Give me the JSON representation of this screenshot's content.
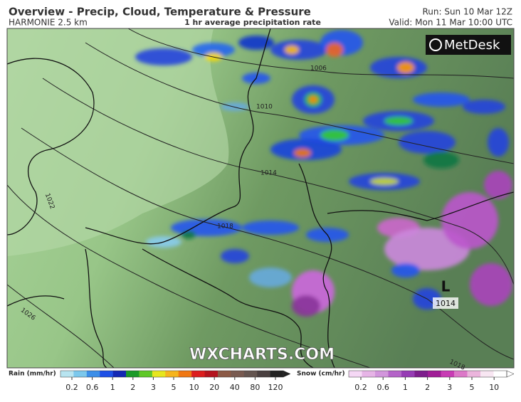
{
  "header": {
    "title": "Overview - Precip, Cloud, Temperature & Pressure",
    "model": "HARMONIE 2.5 km",
    "subtitle": "1 hr average precipitation rate",
    "run": "Run: Sun 10 Mar 12Z",
    "valid": "Valid: Mon 11 Mar 10:00 UTC"
  },
  "map": {
    "logo": "MetDesk",
    "watermark": "WXCHARTS.COM",
    "isobar_labels": [
      "1006",
      "1010",
      "1014",
      "1018",
      "1022",
      "1026",
      "1018"
    ],
    "low": {
      "symbol": "L",
      "pressure": "1014"
    }
  },
  "legend": {
    "rain": {
      "title": "Rain (mm/hr)",
      "labels": [
        "0.2",
        "0.6",
        "1",
        "2",
        "3",
        "5",
        "10",
        "20",
        "40",
        "80",
        "120"
      ]
    },
    "snow": {
      "title": "Snow (cm/hr)",
      "labels": [
        "0.2",
        "0.6",
        "1",
        "2",
        "3",
        "5",
        "10"
      ]
    }
  }
}
